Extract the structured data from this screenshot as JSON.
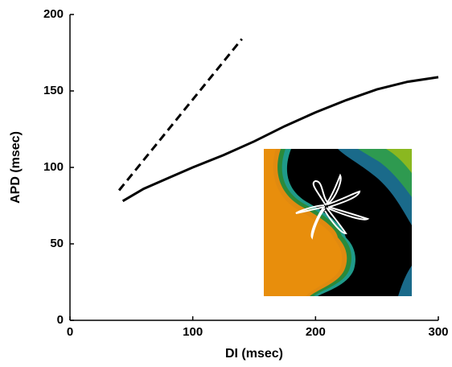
{
  "chart_data": {
    "type": "line",
    "x_label": "DI (msec)",
    "y_label": "APD (msec)",
    "xlim": [
      0,
      300
    ],
    "ylim": [
      0,
      200
    ],
    "xticks": [
      0,
      100,
      200,
      300
    ],
    "yticks": [
      0,
      50,
      100,
      150,
      200
    ],
    "series": [
      {
        "color": "#000000",
        "dash": false,
        "x": [
          43,
          60,
          80,
          100,
          125,
          150,
          175,
          200,
          225,
          250,
          275,
          300
        ],
        "values": [
          78,
          86,
          93,
          100,
          108,
          117,
          127,
          136,
          144,
          151,
          156,
          159
        ]
      },
      {
        "color": "#000000",
        "dash": true,
        "x": [
          40,
          140
        ],
        "values": [
          85,
          184
        ]
      }
    ]
  }
}
